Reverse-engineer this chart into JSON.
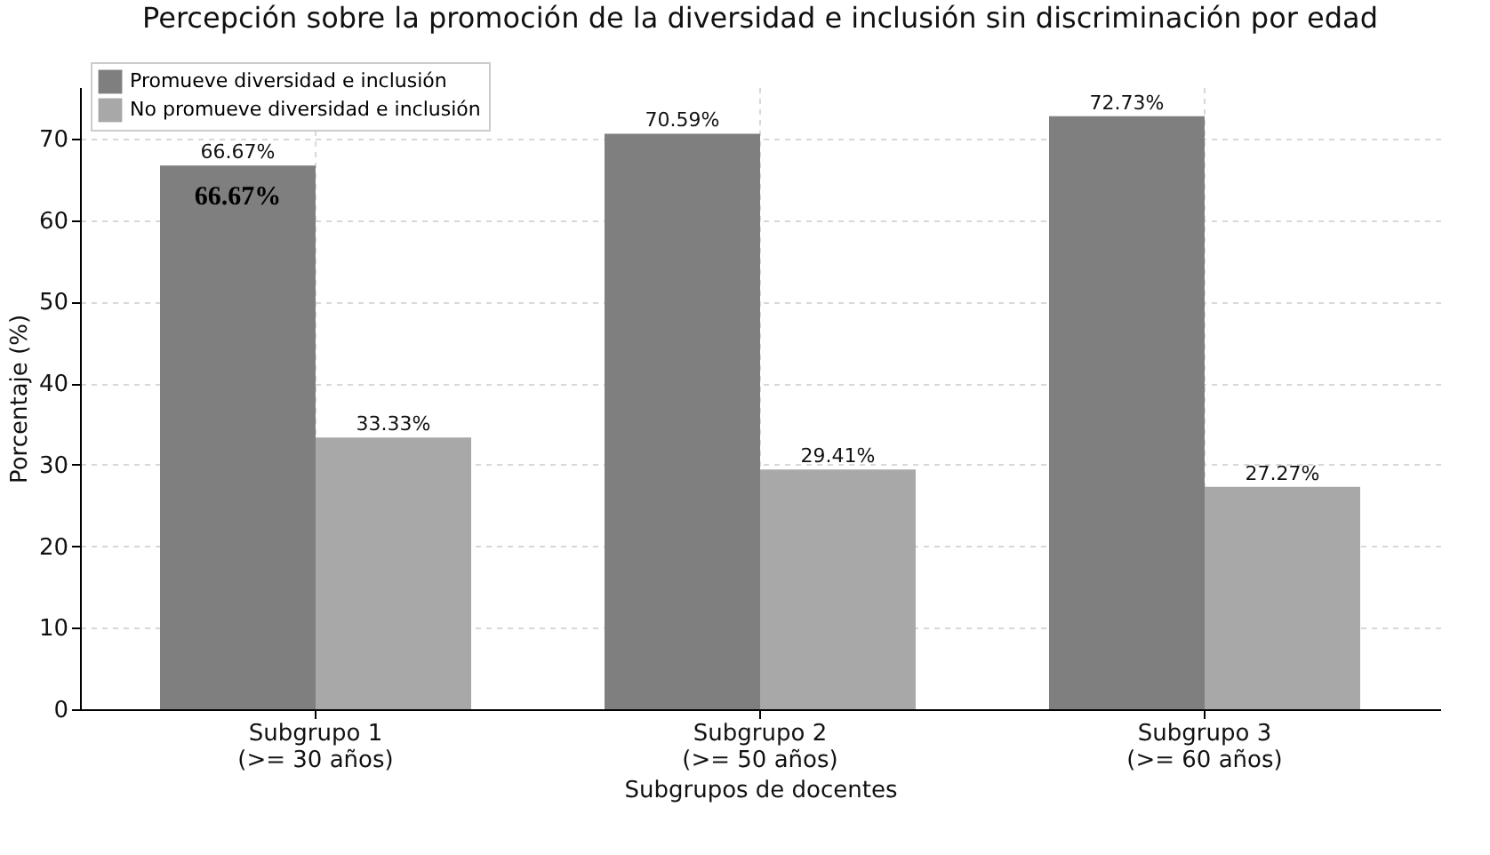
{
  "chart_data": {
    "type": "bar",
    "title": "Percepción sobre la promoción de la diversidad e inclusión sin discriminación por edad",
    "xlabel": "Subgrupos de docentes",
    "ylabel": "Porcentaje (%)",
    "categories": [
      "Subgrupo 1\n(>= 30 años)",
      "Subgrupo 2\n(>= 50 años)",
      "Subgrupo 3\n(>= 60 años)"
    ],
    "series": [
      {
        "name": "Promueve diversidad e inclusión",
        "color": "#7f7f7f",
        "values": [
          66.67,
          70.59,
          72.73
        ],
        "value_labels": [
          "66.67%",
          "70.59%",
          "72.73%"
        ]
      },
      {
        "name": "No promueve diversidad e inclusión",
        "color": "#a8a8a8",
        "values": [
          33.33,
          29.41,
          27.27
        ],
        "value_labels": [
          "33.33%",
          "29.41%",
          "27.27%"
        ]
      }
    ],
    "ylim": [
      0,
      76.3
    ],
    "yticks": [
      0,
      10,
      20,
      30,
      40,
      50,
      60,
      70
    ],
    "grid": true,
    "legend": "top left",
    "annotations": [
      {
        "text": "66.67%",
        "x": "Subgrupo 1\n(>= 30 años)",
        "y": 66.67
      }
    ]
  }
}
